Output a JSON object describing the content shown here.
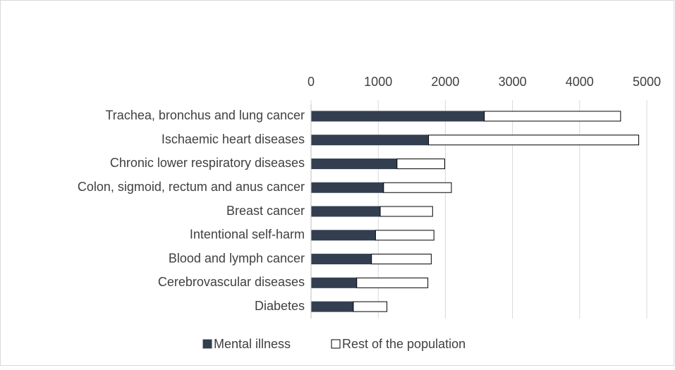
{
  "chart_data": {
    "type": "stacked-barh",
    "categories": [
      "Trachea, bronchus and lung cancer",
      "Ischaemic heart diseases",
      "Chronic lower respiratory diseases",
      "Colon, sigmoid, rectum and anus cancer",
      "Breast cancer",
      "Intentional self-harm",
      "Blood and lymph cancer",
      "Cerebrovascular diseases",
      "Diabetes"
    ],
    "series": [
      {
        "name": "Mental illness",
        "color": "#333f50",
        "values": [
          2580,
          1750,
          1280,
          1080,
          1030,
          960,
          900,
          680,
          630
        ]
      },
      {
        "name": "Rest of the population",
        "color": "#ffffff",
        "values": [
          2030,
          3130,
          710,
          1010,
          780,
          870,
          890,
          1060,
          500
        ]
      }
    ],
    "xlim": [
      0,
      5000
    ],
    "xticks": [
      0,
      1000,
      2000,
      3000,
      4000,
      5000
    ],
    "grid": true,
    "legend": "bottom"
  }
}
